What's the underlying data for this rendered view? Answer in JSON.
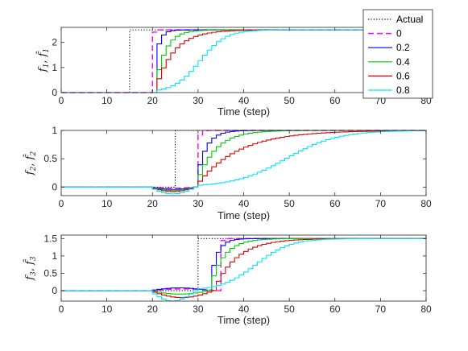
{
  "chart_data": [
    {
      "type": "line",
      "panel": "f1",
      "ylabel": "f̂₁, f₁",
      "ylabel_main": "f",
      "ylabel_sub": "1",
      "xlabel": "Time (step)",
      "xlim": [
        0,
        80
      ],
      "ylim": [
        0,
        2.6
      ],
      "xticks": [
        0,
        10,
        20,
        30,
        40,
        50,
        60,
        70,
        80
      ],
      "yticks": [
        0,
        1,
        2
      ],
      "fault_value": 2.5,
      "actual_onset": 15,
      "detect_start": 20,
      "series": [
        {
          "name": "Actual",
          "style": "dotted",
          "color": "#000000",
          "kind": "actual"
        },
        {
          "name": "0",
          "style": "dashed",
          "color": "#ff00ff",
          "delay": 0,
          "tau": 0.3,
          "dip": 0
        },
        {
          "name": "0.2",
          "style": "solid",
          "color": "#0000ff",
          "delay": 0.5,
          "tau": 1.0,
          "dip": 0
        },
        {
          "name": "0.4",
          "style": "solid",
          "color": "#00cc00",
          "delay": 1,
          "tau": 2.2,
          "dip": 0
        },
        {
          "name": "0.6",
          "style": "solid",
          "color": "#dd0000",
          "delay": 1,
          "tau": 4.0,
          "dip": 0
        },
        {
          "name": "0.8",
          "style": "solid",
          "color": "#00e5ff",
          "delay": 1,
          "tau": 9.0,
          "dip": 0,
          "sigmoid": true
        }
      ]
    },
    {
      "type": "line",
      "panel": "f2",
      "ylabel_main": "f",
      "ylabel_sub": "2",
      "xlabel": "Time (step)",
      "xlim": [
        0,
        80
      ],
      "ylim": [
        -0.15,
        1.0
      ],
      "xticks": [
        0,
        10,
        20,
        30,
        40,
        50,
        60,
        70,
        80
      ],
      "yticks": [
        0,
        0.5,
        1
      ],
      "fault_value": 1.0,
      "actual_onset": 25,
      "detect_start": 20,
      "series": [
        {
          "name": "Actual",
          "style": "dotted",
          "color": "#000000",
          "kind": "actual"
        },
        {
          "name": "0",
          "style": "dashed",
          "color": "#ff00ff",
          "delay": 10,
          "tau": 0.4,
          "dip": -0.02
        },
        {
          "name": "0.2",
          "style": "solid",
          "color": "#0000ff",
          "delay": 10,
          "tau": 2.0,
          "dip": -0.04
        },
        {
          "name": "0.4",
          "style": "solid",
          "color": "#00cc00",
          "delay": 10,
          "tau": 4.0,
          "dip": -0.06
        },
        {
          "name": "0.6",
          "style": "solid",
          "color": "#dd0000",
          "delay": 10,
          "tau": 9.0,
          "dip": -0.08
        },
        {
          "name": "0.8",
          "style": "solid",
          "color": "#00e5ff",
          "delay": 10,
          "tau": 18.0,
          "dip": -0.12,
          "sigmoid": true
        }
      ]
    },
    {
      "type": "line",
      "panel": "f3",
      "ylabel_main": "f",
      "ylabel_sub": "3",
      "xlabel": "Time (step)",
      "xlim": [
        0,
        80
      ],
      "ylim": [
        -0.3,
        1.6
      ],
      "xticks": [
        0,
        10,
        20,
        30,
        40,
        50,
        60,
        70,
        80
      ],
      "yticks": [
        0,
        0.5,
        1,
        1.5
      ],
      "fault_value": 1.5,
      "actual_onset": 30,
      "detect_start": 20,
      "series": [
        {
          "name": "Actual",
          "style": "dotted",
          "color": "#000000",
          "kind": "actual"
        },
        {
          "name": "0",
          "style": "dashed",
          "color": "#ff00ff",
          "delay": 15,
          "tau": 0.3,
          "dip": 0.05
        },
        {
          "name": "0.2",
          "style": "solid",
          "color": "#0000ff",
          "delay": 13,
          "tau": 1.5,
          "dip": 0.08
        },
        {
          "name": "0.4",
          "style": "solid",
          "color": "#00cc00",
          "delay": 13,
          "tau": 3.0,
          "dip": -0.1
        },
        {
          "name": "0.6",
          "style": "solid",
          "color": "#dd0000",
          "delay": 14,
          "tau": 5.0,
          "dip": -0.2
        },
        {
          "name": "0.8",
          "style": "solid",
          "color": "#00e5ff",
          "delay": 10,
          "tau": 12.0,
          "dip": -0.3,
          "sigmoid": true
        }
      ]
    }
  ],
  "legend": {
    "placement": "top-right",
    "entries": [
      "Actual",
      "0",
      "0.2",
      "0.4",
      "0.6",
      "0.8"
    ]
  }
}
